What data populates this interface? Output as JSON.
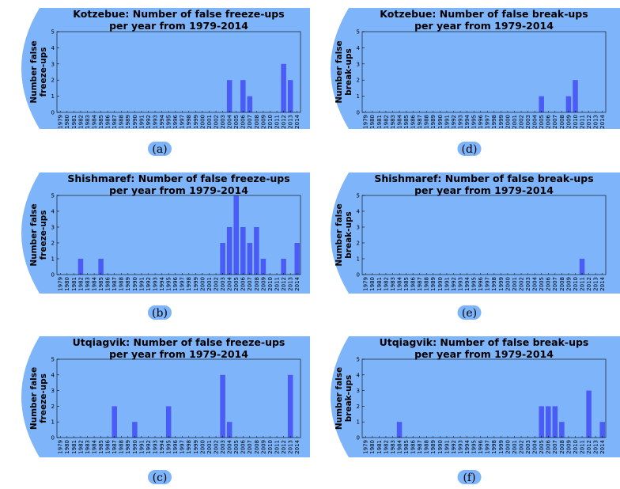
{
  "years": [
    "1979",
    "1980",
    "1981",
    "1982",
    "1983",
    "1984",
    "1985",
    "1986",
    "1987",
    "1988",
    "1989",
    "1990",
    "1991",
    "1992",
    "1993",
    "1994",
    "1995",
    "1996",
    "1997",
    "1998",
    "1999",
    "2000",
    "2001",
    "2002",
    "2003",
    "2004",
    "2005",
    "2006",
    "2007",
    "2008",
    "2009",
    "2010",
    "2011",
    "2012",
    "2013",
    "2014"
  ],
  "colors": {
    "background": "#7eb4fa",
    "bar": "#4a5cf5",
    "text": "#000000",
    "axis": "#000000"
  },
  "chart_data": [
    {
      "id": "a",
      "type": "bar",
      "caption": "(a)",
      "title_lines": [
        "Kotzebue: Number of false freeze-ups",
        "per year from 1979-2014"
      ],
      "ylabel_lines": [
        "Number false",
        "freeze-ups"
      ],
      "ylim": [
        0,
        5
      ],
      "yticks": [
        0,
        1,
        2,
        3,
        4,
        5
      ],
      "first_year": 1979,
      "last_year": 2014,
      "values": [
        0,
        0,
        0,
        0,
        0,
        0,
        0,
        0,
        0,
        0,
        0,
        0,
        0,
        0,
        0,
        0,
        0,
        0,
        0,
        0,
        0,
        0,
        0,
        0,
        0,
        2,
        0,
        2,
        1,
        0,
        0,
        0,
        0,
        3,
        2,
        0
      ]
    },
    {
      "id": "d",
      "type": "bar",
      "caption": "(d)",
      "title_lines": [
        "Kotzebue: Number of false break-ups",
        "per year from 1979-2014"
      ],
      "ylabel_lines": [
        "Number false",
        "break-ups"
      ],
      "ylim": [
        0,
        5
      ],
      "yticks": [
        0,
        1,
        2,
        3,
        4,
        5
      ],
      "first_year": 1979,
      "last_year": 2014,
      "values": [
        0,
        0,
        0,
        0,
        0,
        0,
        0,
        0,
        0,
        0,
        0,
        0,
        0,
        0,
        0,
        0,
        0,
        0,
        0,
        0,
        0,
        0,
        0,
        0,
        0,
        0,
        1,
        0,
        0,
        0,
        1,
        2,
        0,
        0,
        0,
        0
      ]
    },
    {
      "id": "b",
      "type": "bar",
      "caption": "(b)",
      "title_lines": [
        "Shishmaref: Number of false freeze-ups",
        "per year from 1979-2014"
      ],
      "ylabel_lines": [
        "Number false",
        "freeze-ups"
      ],
      "ylim": [
        0,
        5
      ],
      "yticks": [
        0,
        1,
        2,
        3,
        4,
        5
      ],
      "first_year": 1979,
      "last_year": 2014,
      "values": [
        0,
        0,
        0,
        1,
        0,
        0,
        1,
        0,
        0,
        0,
        0,
        0,
        0,
        0,
        0,
        0,
        0,
        0,
        0,
        0,
        0,
        0,
        0,
        0,
        2,
        3,
        5,
        3,
        2,
        3,
        1,
        0,
        0,
        1,
        0,
        2
      ]
    },
    {
      "id": "e",
      "type": "bar",
      "caption": "(e)",
      "title_lines": [
        "Shishmaref: Number of false break-ups",
        "per year from 1979-2014"
      ],
      "ylabel_lines": [
        "Number false",
        "break-ups"
      ],
      "ylim": [
        0,
        5
      ],
      "yticks": [
        0,
        1,
        2,
        3,
        4,
        5
      ],
      "first_year": 1979,
      "last_year": 2014,
      "values": [
        0,
        0,
        0,
        0,
        0,
        0,
        0,
        0,
        0,
        0,
        0,
        0,
        0,
        0,
        0,
        0,
        0,
        0,
        0,
        0,
        0,
        0,
        0,
        0,
        0,
        0,
        0,
        0,
        0,
        0,
        0,
        0,
        1,
        0,
        0,
        0
      ]
    },
    {
      "id": "c",
      "type": "bar",
      "caption": "(c)",
      "title_lines": [
        "Utqiagvik: Number of false freeze-ups",
        "per year from 1979-2014"
      ],
      "ylabel_lines": [
        "Number false",
        "freeze-ups"
      ],
      "ylim": [
        0,
        5
      ],
      "yticks": [
        0,
        1,
        2,
        3,
        4,
        5
      ],
      "first_year": 1979,
      "last_year": 2014,
      "values": [
        0,
        0,
        0,
        0,
        0,
        0,
        0,
        0,
        2,
        0,
        0,
        1,
        0,
        0,
        0,
        0,
        2,
        0,
        0,
        0,
        0,
        0,
        0,
        0,
        4,
        1,
        0,
        0,
        0,
        0,
        0,
        0,
        0,
        0,
        4,
        0
      ]
    },
    {
      "id": "f",
      "type": "bar",
      "caption": "(f)",
      "title_lines": [
        "Utqiagvik: Number of false break-ups",
        "per year from 1979-2014"
      ],
      "ylabel_lines": [
        "Number false",
        "break-ups"
      ],
      "ylim": [
        0,
        5
      ],
      "yticks": [
        0,
        1,
        2,
        3,
        4,
        5
      ],
      "first_year": 1979,
      "last_year": 2014,
      "values": [
        0,
        0,
        0,
        0,
        0,
        1,
        0,
        0,
        0,
        0,
        0,
        0,
        0,
        0,
        0,
        0,
        0,
        0,
        0,
        0,
        0,
        0,
        0,
        0,
        0,
        0,
        2,
        2,
        2,
        1,
        0,
        0,
        0,
        3,
        0,
        1
      ]
    }
  ]
}
